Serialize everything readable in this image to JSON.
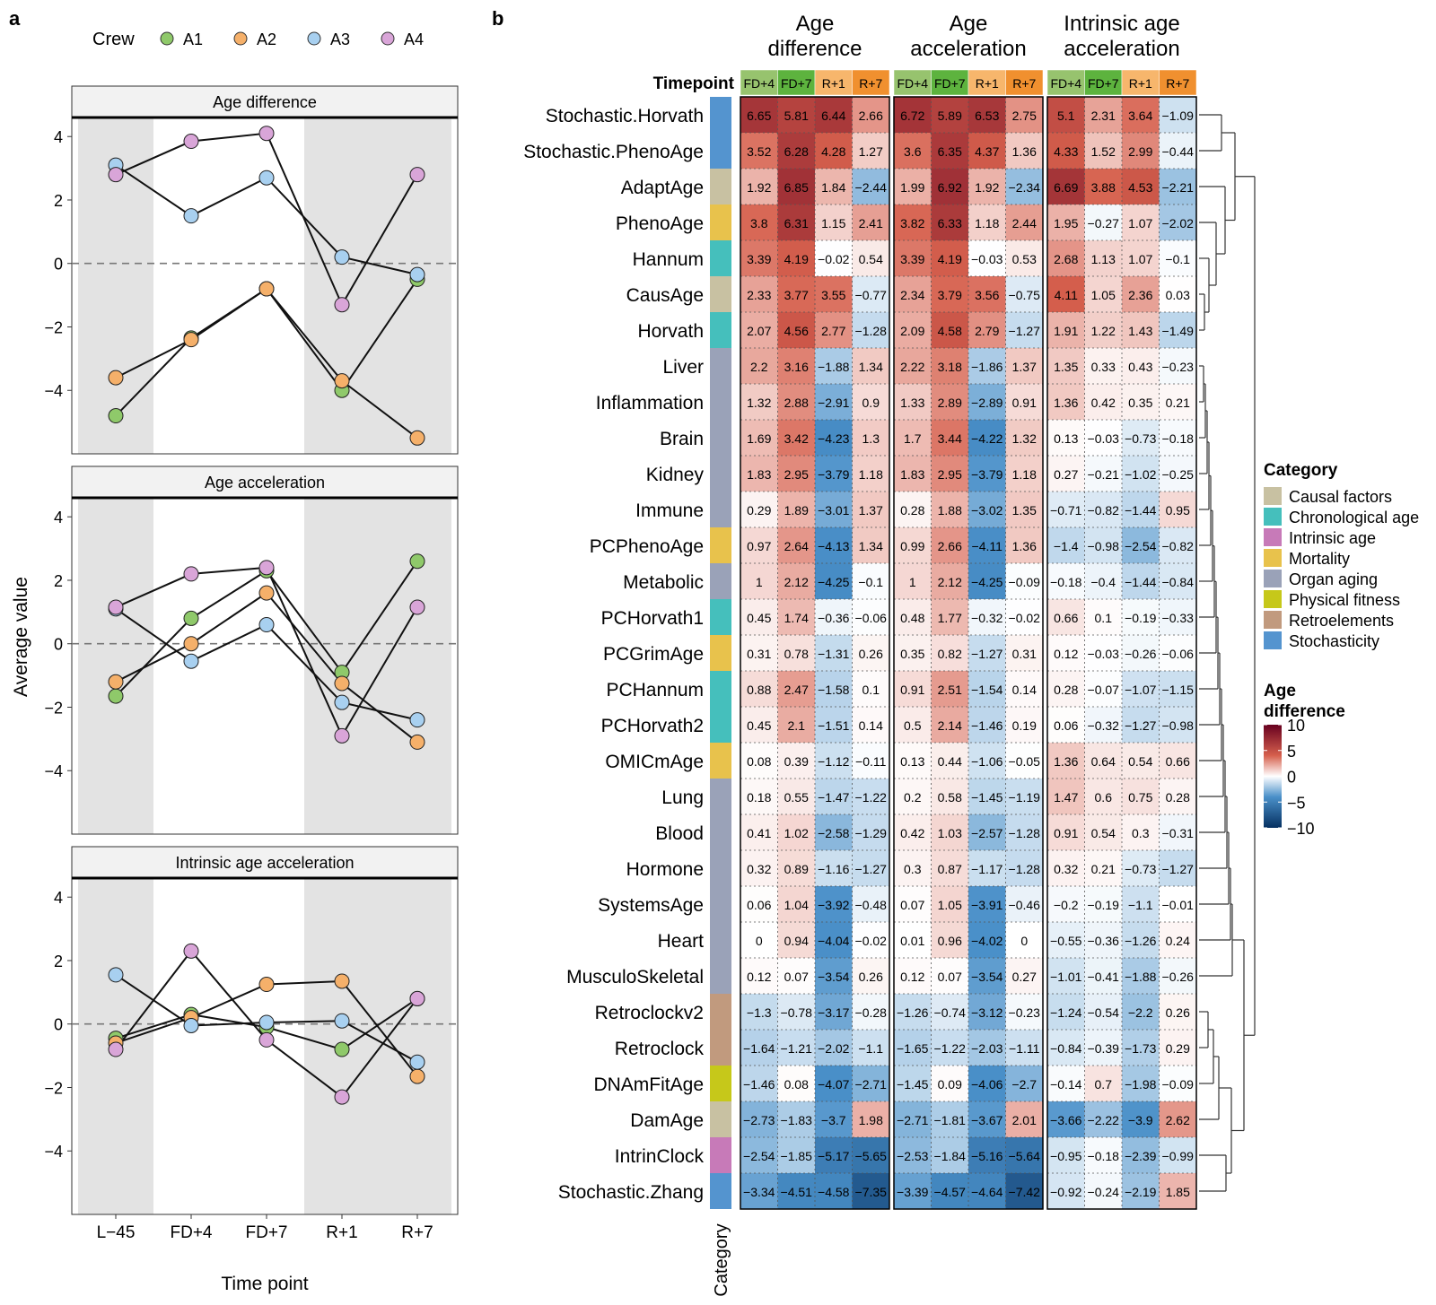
{
  "panel_labels": {
    "a": "a",
    "b": "b"
  },
  "chart_data": [
    {
      "type": "line",
      "panel": "a",
      "legend_title": "Crew",
      "legend_position": "top",
      "crew": [
        "A1",
        "A2",
        "A3",
        "A4"
      ],
      "crew_colors": {
        "A1": "#8fc96a",
        "A2": "#f5b06a",
        "A3": "#a8d0f0",
        "A4": "#d9a5d8"
      },
      "x": [
        "L−45",
        "FD+4",
        "FD+7",
        "R+1",
        "R+7"
      ],
      "xlabel": "Time point",
      "ylabel": "Average value",
      "ylim": [
        -6.0,
        4.6
      ],
      "yticks": [
        -4,
        -2,
        0,
        2,
        4
      ],
      "ytick_labels": [
        "−4",
        "−2",
        "0",
        "2",
        "4"
      ],
      "shaded_x": [
        "L−45",
        "R+1",
        "R+7"
      ],
      "reference_line_y": 0,
      "facets": [
        {
          "title": "Age difference",
          "series": [
            {
              "name": "A1",
              "values": [
                -4.8,
                -2.35,
                -0.8,
                -4.0,
                -0.5
              ]
            },
            {
              "name": "A2",
              "values": [
                -3.6,
                -2.4,
                -0.8,
                -3.7,
                -5.5
              ]
            },
            {
              "name": "A3",
              "values": [
                3.1,
                1.5,
                2.7,
                0.2,
                -0.35
              ]
            },
            {
              "name": "A4",
              "values": [
                2.8,
                3.85,
                4.1,
                -1.3,
                2.8
              ]
            }
          ]
        },
        {
          "title": "Age acceleration",
          "series": [
            {
              "name": "A1",
              "values": [
                -1.65,
                0.8,
                2.3,
                -0.9,
                2.6
              ]
            },
            {
              "name": "A2",
              "values": [
                -1.2,
                0.0,
                1.6,
                -1.25,
                -3.1
              ]
            },
            {
              "name": "A3",
              "values": [
                1.1,
                -0.55,
                0.6,
                -1.85,
                -2.4
              ]
            },
            {
              "name": "A4",
              "values": [
                1.15,
                2.2,
                2.4,
                -2.9,
                1.15
              ]
            }
          ]
        },
        {
          "title": "Intrinsic age acceleration",
          "series": [
            {
              "name": "A1",
              "values": [
                -0.45,
                0.3,
                -0.1,
                -0.8,
                0.8
              ]
            },
            {
              "name": "A2",
              "values": [
                -0.6,
                0.2,
                1.25,
                1.35,
                -1.65
              ]
            },
            {
              "name": "A3",
              "values": [
                1.55,
                -0.05,
                0.05,
                0.1,
                -1.2
              ]
            },
            {
              "name": "A4",
              "values": [
                -0.8,
                2.3,
                -0.5,
                -2.3,
                0.8
              ]
            }
          ]
        }
      ]
    },
    {
      "type": "heatmap",
      "panel": "b",
      "timepoint_label": "Timepoint",
      "timepoints": [
        "FD+4",
        "FD+7",
        "R+1",
        "R+7"
      ],
      "timepoint_colors": [
        "#97c36e",
        "#5db33e",
        "#f7b66c",
        "#f0902f"
      ],
      "groups": [
        {
          "title": [
            "Age",
            "difference"
          ]
        },
        {
          "title": [
            "Age",
            "acceleration"
          ]
        },
        {
          "title": [
            "Intrinsic age",
            "acceleration"
          ]
        }
      ],
      "row_annotation_label": "Category",
      "rows": [
        "Stochastic.Horvath",
        "Stochastic.PhenoAge",
        "AdaptAge",
        "PhenoAge",
        "Hannum",
        "CausAge",
        "Horvath",
        "Liver",
        "Inflammation",
        "Brain",
        "Kidney",
        "Immune",
        "PCPhenoAge",
        "Metabolic",
        "PCHorvath1",
        "PCGrimAge",
        "PCHannum",
        "PCHorvath2",
        "OMICmAge",
        "Lung",
        "Blood",
        "Hormone",
        "SystemsAge",
        "Heart",
        "MusculoSkeletal",
        "Retroclockv2",
        "Retroclock",
        "DNAmFitAge",
        "DamAge",
        "IntrinClock",
        "Stochastic.Zhang"
      ],
      "row_categories": [
        "Stochasticity",
        "Stochasticity",
        "Causal factors",
        "Mortality",
        "Chronological age",
        "Causal factors",
        "Chronological age",
        "Organ aging",
        "Organ aging",
        "Organ aging",
        "Organ aging",
        "Organ aging",
        "Mortality",
        "Organ aging",
        "Chronological age",
        "Mortality",
        "Chronological age",
        "Chronological age",
        "Mortality",
        "Organ aging",
        "Organ aging",
        "Organ aging",
        "Organ aging",
        "Organ aging",
        "Organ aging",
        "Retroelements",
        "Retroelements",
        "Physical fitness",
        "Causal factors",
        "Intrinsic age",
        "Stochasticity"
      ],
      "values": [
        [
          6.65,
          5.81,
          6.44,
          2.66,
          6.72,
          5.89,
          6.53,
          2.75,
          5.1,
          2.31,
          3.64,
          -1.09
        ],
        [
          3.52,
          6.28,
          4.28,
          1.27,
          3.6,
          6.35,
          4.37,
          1.36,
          4.33,
          1.52,
          2.99,
          -0.44
        ],
        [
          1.92,
          6.85,
          1.84,
          -2.44,
          1.99,
          6.92,
          1.92,
          -2.34,
          6.69,
          3.88,
          4.53,
          -2.21
        ],
        [
          3.8,
          6.31,
          1.15,
          2.41,
          3.82,
          6.33,
          1.18,
          2.44,
          1.95,
          -0.27,
          1.07,
          -2.02
        ],
        [
          3.39,
          4.19,
          -0.02,
          0.54,
          3.39,
          4.19,
          -0.03,
          0.53,
          2.68,
          1.13,
          1.07,
          -0.1
        ],
        [
          2.33,
          3.77,
          3.55,
          -0.77,
          2.34,
          3.79,
          3.56,
          -0.75,
          4.11,
          1.05,
          2.36,
          0.03
        ],
        [
          2.07,
          4.56,
          2.77,
          -1.28,
          2.09,
          4.58,
          2.79,
          -1.27,
          1.91,
          1.22,
          1.43,
          -1.49
        ],
        [
          2.2,
          3.16,
          -1.88,
          1.34,
          2.22,
          3.18,
          -1.86,
          1.37,
          1.35,
          0.33,
          0.43,
          -0.23
        ],
        [
          1.32,
          2.88,
          -2.91,
          0.9,
          1.33,
          2.89,
          -2.89,
          0.91,
          1.36,
          0.42,
          0.35,
          0.21
        ],
        [
          1.69,
          3.42,
          -4.23,
          1.3,
          1.7,
          3.44,
          -4.22,
          1.32,
          0.13,
          -0.03,
          -0.73,
          -0.18
        ],
        [
          1.83,
          2.95,
          -3.79,
          1.18,
          1.83,
          2.95,
          -3.79,
          1.18,
          0.27,
          -0.21,
          -1.02,
          -0.25
        ],
        [
          0.29,
          1.89,
          -3.01,
          1.37,
          0.28,
          1.88,
          -3.02,
          1.35,
          -0.71,
          -0.82,
          -1.44,
          0.95
        ],
        [
          0.97,
          2.64,
          -4.13,
          1.34,
          0.99,
          2.66,
          -4.11,
          1.36,
          -1.4,
          -0.98,
          -2.54,
          -0.82
        ],
        [
          1,
          2.12,
          -4.25,
          -0.1,
          1,
          2.12,
          -4.25,
          -0.09,
          -0.18,
          -0.4,
          -1.44,
          -0.84
        ],
        [
          0.45,
          1.74,
          -0.36,
          -0.06,
          0.48,
          1.77,
          -0.32,
          -0.02,
          0.66,
          0.1,
          -0.19,
          -0.33
        ],
        [
          0.31,
          0.78,
          -1.31,
          0.26,
          0.35,
          0.82,
          -1.27,
          0.31,
          0.12,
          -0.03,
          -0.26,
          -0.06
        ],
        [
          0.88,
          2.47,
          -1.58,
          0.1,
          0.91,
          2.51,
          -1.54,
          0.14,
          0.28,
          -0.07,
          -1.07,
          -1.15
        ],
        [
          0.45,
          2.1,
          -1.51,
          0.14,
          0.5,
          2.14,
          -1.46,
          0.19,
          0.06,
          -0.32,
          -1.27,
          -0.98
        ],
        [
          0.08,
          0.39,
          -1.12,
          -0.11,
          0.13,
          0.44,
          -1.06,
          -0.05,
          1.36,
          0.64,
          0.54,
          0.66
        ],
        [
          0.18,
          0.55,
          -1.47,
          -1.22,
          0.2,
          0.58,
          -1.45,
          -1.19,
          1.47,
          0.6,
          0.75,
          0.28
        ],
        [
          0.41,
          1.02,
          -2.58,
          -1.29,
          0.42,
          1.03,
          -2.57,
          -1.28,
          0.91,
          0.54,
          0.3,
          -0.31
        ],
        [
          0.32,
          0.89,
          -1.16,
          -1.27,
          0.3,
          0.87,
          -1.17,
          -1.28,
          0.32,
          0.21,
          -0.73,
          -1.27
        ],
        [
          0.06,
          1.04,
          -3.92,
          -0.48,
          0.07,
          1.05,
          -3.91,
          -0.46,
          -0.2,
          -0.19,
          -1.1,
          -0.01
        ],
        [
          0,
          0.94,
          -4.04,
          -0.02,
          0.01,
          0.96,
          -4.02,
          0,
          -0.55,
          -0.36,
          -1.26,
          0.24
        ],
        [
          0.12,
          0.07,
          -3.54,
          0.26,
          0.12,
          0.07,
          -3.54,
          0.27,
          -1.01,
          -0.41,
          -1.88,
          -0.26
        ],
        [
          -1.3,
          -0.78,
          -3.17,
          -0.28,
          -1.26,
          -0.74,
          -3.12,
          -0.23,
          -1.24,
          -0.54,
          -2.2,
          0.26
        ],
        [
          -1.64,
          -1.21,
          -2.02,
          -1.1,
          -1.65,
          -1.22,
          -2.03,
          -1.11,
          -0.84,
          -0.39,
          -1.73,
          0.29
        ],
        [
          -1.46,
          0.08,
          -4.07,
          -2.71,
          -1.45,
          0.09,
          -4.06,
          -2.7,
          -0.14,
          0.7,
          -1.98,
          -0.09
        ],
        [
          -2.73,
          -1.83,
          -3.7,
          1.98,
          -2.71,
          -1.81,
          -3.67,
          2.01,
          -3.66,
          -2.22,
          -3.9,
          2.62
        ],
        [
          -2.54,
          -1.85,
          -5.17,
          -5.65,
          -2.53,
          -1.84,
          -5.16,
          -5.64,
          -0.95,
          -0.18,
          -2.39,
          -0.99
        ],
        [
          -3.34,
          -4.51,
          -4.58,
          -7.35,
          -3.39,
          -4.57,
          -4.64,
          -7.42,
          -0.92,
          -0.24,
          -2.19,
          1.85
        ]
      ],
      "category_legend": {
        "title": "Category",
        "items": [
          {
            "label": "Causal factors",
            "color": "#c8c1a2"
          },
          {
            "label": "Chronological age",
            "color": "#45bfbc"
          },
          {
            "label": "Intrinsic age",
            "color": "#c77ab8"
          },
          {
            "label": "Mortality",
            "color": "#e8c24c"
          },
          {
            "label": "Organ aging",
            "color": "#9aa2b8"
          },
          {
            "label": "Physical fitness",
            "color": "#c6c81a"
          },
          {
            "label": "Retroelements",
            "color": "#c19a7e"
          },
          {
            "label": "Stochasticity",
            "color": "#5494cf"
          }
        ]
      },
      "color_scale": {
        "title": [
          "Age",
          "difference"
        ],
        "range": [
          -10,
          10
        ],
        "ticks": [
          10,
          5,
          0,
          -5,
          -10
        ],
        "tick_labels": [
          "10",
          "5",
          "0",
          "−5",
          "−10"
        ],
        "colors": {
          "low": "#053061",
          "mid_low": "#4a90c9",
          "mid": "#ffffff",
          "mid_high": "#d6604d",
          "high": "#67001f"
        }
      },
      "dendrogram": "right"
    }
  ]
}
